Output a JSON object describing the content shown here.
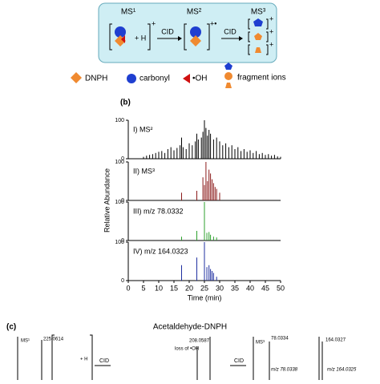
{
  "scheme": {
    "stages": [
      "MS¹",
      "MS²",
      "MS³"
    ],
    "cid": [
      "CID",
      "CID"
    ],
    "h": "+ H",
    "charges": [
      "+",
      "+•",
      "+",
      "+",
      "+"
    ]
  },
  "legend": [
    {
      "label": "DNPH"
    },
    {
      "label": "carbonyl"
    },
    {
      "label": "•OH"
    },
    {
      "label": "fragment ions"
    }
  ],
  "panel_b": {
    "label": "(b)"
  },
  "chart_data": [
    {
      "type": "stem",
      "name": "I) MS²",
      "color": "#000000",
      "ylabel": "Relative Abundance",
      "x": [
        5,
        6,
        7,
        8,
        9,
        10,
        11,
        12,
        13,
        14,
        15,
        16,
        17,
        17.5,
        18,
        19,
        20,
        21,
        22,
        22.5,
        23,
        24,
        24.5,
        25,
        25.5,
        26,
        26.5,
        27,
        28,
        29,
        30,
        31,
        32,
        33,
        34,
        35,
        36,
        37,
        38,
        39,
        40,
        41,
        42,
        43,
        44,
        45,
        46,
        47,
        48,
        49,
        50
      ],
      "values": [
        5,
        8,
        10,
        12,
        15,
        18,
        20,
        15,
        25,
        30,
        22,
        28,
        35,
        55,
        30,
        25,
        40,
        35,
        45,
        65,
        50,
        55,
        70,
        100,
        80,
        60,
        75,
        65,
        50,
        55,
        45,
        35,
        40,
        30,
        35,
        25,
        30,
        20,
        25,
        18,
        22,
        15,
        20,
        12,
        15,
        10,
        12,
        8,
        10,
        6,
        5
      ],
      "xlim": [
        0,
        50
      ],
      "ylim": [
        0,
        100
      ],
      "yticks": [
        0,
        100
      ]
    },
    {
      "type": "stem",
      "name": "II) MS³",
      "color": "#8b1a1a",
      "x": [
        17.5,
        22.5,
        24.5,
        25,
        25.5,
        26,
        26.5,
        27,
        27.5,
        28,
        28.5,
        29,
        30
      ],
      "values": [
        20,
        25,
        60,
        40,
        100,
        50,
        80,
        70,
        55,
        45,
        35,
        30,
        20
      ],
      "xlim": [
        0,
        50
      ],
      "ylim": [
        0,
        100
      ],
      "yticks": [
        0,
        100
      ]
    },
    {
      "type": "stem",
      "name": "III) m/z 78.0332",
      "color": "#2ca02c",
      "x": [
        17.5,
        22.5,
        25,
        25.8,
        26.5,
        27,
        28,
        29
      ],
      "values": [
        10,
        25,
        100,
        20,
        22,
        15,
        10,
        8
      ],
      "xlim": [
        0,
        50
      ],
      "ylim": [
        0,
        100
      ],
      "yticks": [
        0,
        100
      ]
    },
    {
      "type": "stem",
      "name": "IV) m/z 164.0323",
      "color": "#1f2fa0",
      "x": [
        17.5,
        22.5,
        25,
        25.8,
        26.5,
        27,
        27.5,
        28,
        29
      ],
      "values": [
        40,
        60,
        100,
        35,
        40,
        30,
        25,
        20,
        10
      ],
      "xlim": [
        0,
        50
      ],
      "ylim": [
        0,
        100
      ],
      "yticks": [
        0,
        100
      ],
      "xticks": [
        0,
        5,
        10,
        15,
        20,
        25,
        30,
        35,
        40,
        45,
        50
      ],
      "xlabel": "Time (min)"
    }
  ],
  "panel_c": {
    "label": "(c)",
    "title": "Acetaldehyde-DNPH",
    "texts": [
      "MS¹",
      "225.0614",
      "+ H",
      "CID",
      "loss of •OH",
      "208.0587",
      "MS³",
      "78.0334",
      "164.0327",
      "m/z 78.0338",
      "m/z 164.0325",
      "CID"
    ]
  }
}
